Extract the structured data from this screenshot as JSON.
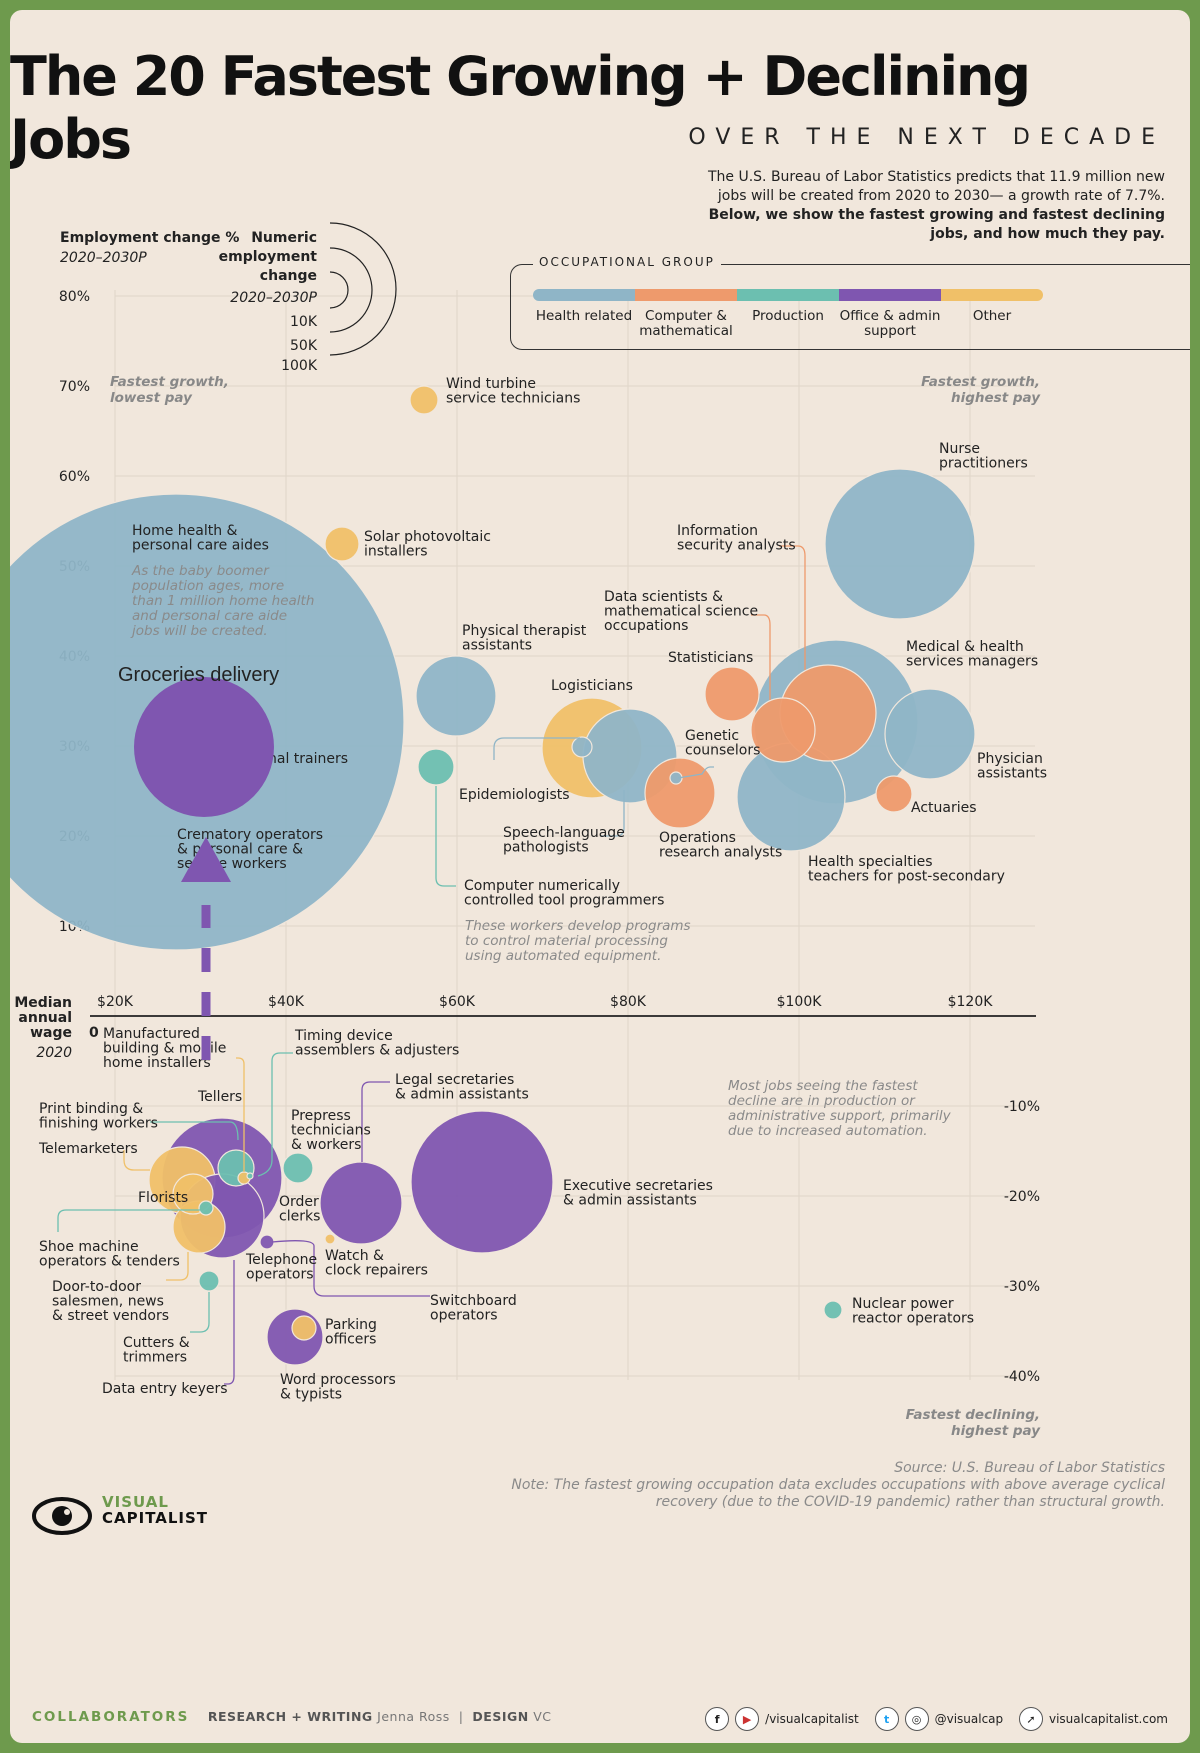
{
  "title": "The 20 Fastest Growing + Declining Jobs",
  "subtitle": "OVER THE NEXT DECADE",
  "intro": {
    "part1": "The U.S. Bureau of Labor Statistics predicts that 11.9 million new jobs will be created from 2020 to 2030— a growth rate of 7.7%.",
    "bold": "Below, we show the fastest growing and fastest declining jobs, and how much they pay."
  },
  "axis_labels": {
    "y_title": "Employment change %",
    "y_sub": "2020–2030P",
    "size_title": "Numeric employment change",
    "size_sub": "2020–2030P",
    "size_ticks": [
      "10K",
      "50K",
      "100K"
    ],
    "x_title": "Median annual wage",
    "x_sub": "2020",
    "zero": "0"
  },
  "corners": {
    "top_left": "Fastest growth, lowest pay",
    "top_right": "Fastest growth, highest pay",
    "bottom_right": "Fastest declining, highest pay"
  },
  "legend": {
    "title": "OCCUPATIONAL GROUP",
    "items": [
      {
        "label": "Health related",
        "color": "#8fb5c7"
      },
      {
        "label": "Computer & mathematical",
        "color": "#ee9a6c"
      },
      {
        "label": "Production",
        "color": "#6cbfb0"
      },
      {
        "label": "Office & admin support",
        "color": "#7f56b0"
      },
      {
        "label": "Other",
        "color": "#f0c068"
      }
    ]
  },
  "notes": {
    "home_health": "As the baby boomer population ages, more than 1 million home health and personal care aide jobs will be created.",
    "cnc": "These workers develop programs to control material processing using automated equipment.",
    "decline": "Most jobs seeing the fastest decline are in production or administrative support, primarily due to increased automation."
  },
  "overlay": {
    "label": "Groceries delivery"
  },
  "chart_data": {
    "type": "scatter",
    "title": "The 20 Fastest Growing + Declining Jobs",
    "xlabel": "Median annual wage 2020",
    "ylabel": "Employment change % 2020–2030P",
    "xlim": [
      12000,
      127000
    ],
    "ylim": [
      -46,
      80
    ],
    "x_ticks": [
      "$20K",
      "$40K",
      "$60K",
      "$80K",
      "$100K",
      "$120K"
    ],
    "y_ticks": [
      "80%",
      "70%",
      "60%",
      "50%",
      "40%",
      "30%",
      "20%",
      "10%",
      "-10%",
      "-20%",
      "-30%",
      "-40%"
    ],
    "size_encoding": "Numeric employment change 2020–2030P",
    "points": [
      {
        "name": "Home health & personal care aides",
        "group": "Health related",
        "x": 27000,
        "y": 33,
        "size": 1130000
      },
      {
        "name": "Wind turbine service technicians",
        "group": "Other",
        "x": 56000,
        "y": 68,
        "size": 4700
      },
      {
        "name": "Solar photovoltaic installers",
        "group": "Other",
        "x": 46000,
        "y": 52,
        "size": 6100
      },
      {
        "name": "Nurse practitioners",
        "group": "Health related",
        "x": 112000,
        "y": 52,
        "size": 114900
      },
      {
        "name": "Physical therapist assistants",
        "group": "Health related",
        "x": 59000,
        "y": 35,
        "size": 33200
      },
      {
        "name": "Fitness trainers & personal trainers",
        "group": "Other",
        "x": 41000,
        "y": 39,
        "size": 0
      },
      {
        "name": "Logisticians",
        "group": "Other",
        "x": 76000,
        "y": 30,
        "size": 56400
      },
      {
        "name": "Statisticians",
        "group": "Computer & mathematical",
        "x": 93000,
        "y": 35,
        "size": 14900
      },
      {
        "name": "Medical & health services managers",
        "group": "Health related",
        "x": 104000,
        "y": 32,
        "size": 139600
      },
      {
        "name": "Data scientists & mathematical science occupations",
        "group": "Computer & mathematical",
        "x": 98000,
        "y": 31,
        "size": 19800
      },
      {
        "name": "Information security analysts",
        "group": "Computer & mathematical",
        "x": 104000,
        "y": 33,
        "size": 47100
      },
      {
        "name": "Physician assistants",
        "group": "Health related",
        "x": 115000,
        "y": 31,
        "size": 40100
      },
      {
        "name": "Epidemiologists",
        "group": "Health related",
        "x": 75000,
        "y": 30,
        "size": 2000
      },
      {
        "name": "Speech-language pathologists",
        "group": "Health related",
        "x": 80000,
        "y": 29,
        "size": 40500
      },
      {
        "name": "Genetic counselors",
        "group": "Health related",
        "x": 86000,
        "y": 26,
        "size": 700
      },
      {
        "name": "Operations research analysts",
        "group": "Computer & mathematical",
        "x": 86000,
        "y": 25,
        "size": 26100
      },
      {
        "name": "Health specialties teachers for post-secondary",
        "group": "Health related",
        "x": 99000,
        "y": 24,
        "size": 59300
      },
      {
        "name": "Actuaries",
        "group": "Computer & mathematical",
        "x": 111000,
        "y": 24,
        "size": 7200
      },
      {
        "name": "Crematory operators & personal care & service workers",
        "group": "Other",
        "x": 28000,
        "y": 24,
        "size": 0
      },
      {
        "name": "Computer numerically controlled tool programmers",
        "group": "Production",
        "x": 57000,
        "y": 27,
        "size": 7200
      },
      {
        "name": "Executive secretaries & admin assistants",
        "group": "Office & admin support",
        "x": 63000,
        "y": -19,
        "size": 94600
      },
      {
        "name": "Legal secretaries & admin assistants",
        "group": "Office & admin support",
        "x": 50000,
        "y": -21,
        "size": 37000
      },
      {
        "name": "Tellers",
        "group": "Office & admin support",
        "x": 32000,
        "y": -15,
        "size": 75000
      },
      {
        "name": "Manufactured building & mobile home installers",
        "group": "Other",
        "x": 35000,
        "y": -18,
        "size": 600
      },
      {
        "name": "Timing device assemblers & adjusters",
        "group": "Production",
        "x": 35000,
        "y": -17,
        "size": 100
      },
      {
        "name": "Prepress technicians & workers",
        "group": "Production",
        "x": 41000,
        "y": -17,
        "size": 4300
      },
      {
        "name": "Print binding & finishing workers",
        "group": "Production",
        "x": 35000,
        "y": -17,
        "size": 7500
      },
      {
        "name": "Telemarketers",
        "group": "Other",
        "x": 27000,
        "y": -19,
        "size": 26400
      },
      {
        "name": "Florists",
        "group": "Other",
        "x": 29000,
        "y": -21,
        "size": 9000
      },
      {
        "name": "Order clerks",
        "group": "Office & admin support",
        "x": 32000,
        "y": -22,
        "size": 37500
      },
      {
        "name": "Shoe machine operators & tenders",
        "group": "Production",
        "x": 31000,
        "y": -22,
        "size": 500
      },
      {
        "name": "Door-to-door salesmen, news & street vendors",
        "group": "Other",
        "x": 29000,
        "y": -24,
        "size": 14800
      },
      {
        "name": "Telephone operators",
        "group": "Office & admin support",
        "x": 38000,
        "y": -26,
        "size": 1100
      },
      {
        "name": "Watch & clock repairers",
        "group": "Other",
        "x": 46000,
        "y": -25,
        "size": 300
      },
      {
        "name": "Cutters & trimmers",
        "group": "Production",
        "x": 31000,
        "y": -30,
        "size": 2400
      },
      {
        "name": "Switchboard operators",
        "group": "Office & admin support",
        "x": 33000,
        "y": -24,
        "size": 6400
      },
      {
        "name": "Data entry keyers",
        "group": "Office & admin support",
        "x": 34000,
        "y": -25,
        "size": 0
      },
      {
        "name": "Word processors & typists",
        "group": "Office & admin support",
        "x": 41000,
        "y": -36,
        "size": 15600
      },
      {
        "name": "Parking officers",
        "group": "Other",
        "x": 42000,
        "y": -35,
        "size": 2300
      },
      {
        "name": "Nuclear power reactor operators",
        "group": "Production",
        "x": 104000,
        "y": -33,
        "size": 1800
      }
    ]
  },
  "footer": {
    "source": "Source: U.S. Bureau of Labor Statistics",
    "note": "Note: The fastest growing occupation data excludes occupations with above average cyclical recovery (due to the COVID-19 pandemic) rather than structural growth.",
    "collaborators": "COLLABORATORS",
    "research_key": "RESEARCH + WRITING",
    "research_val": "Jenna Ross",
    "design_key": "DESIGN",
    "design_val": "VC",
    "logo_top": "VISUAL",
    "logo_bottom": "CAPITALIST",
    "social_1": "/visualcapitalist",
    "social_2": "@visualcap",
    "social_3": "visualcapitalist.com"
  }
}
